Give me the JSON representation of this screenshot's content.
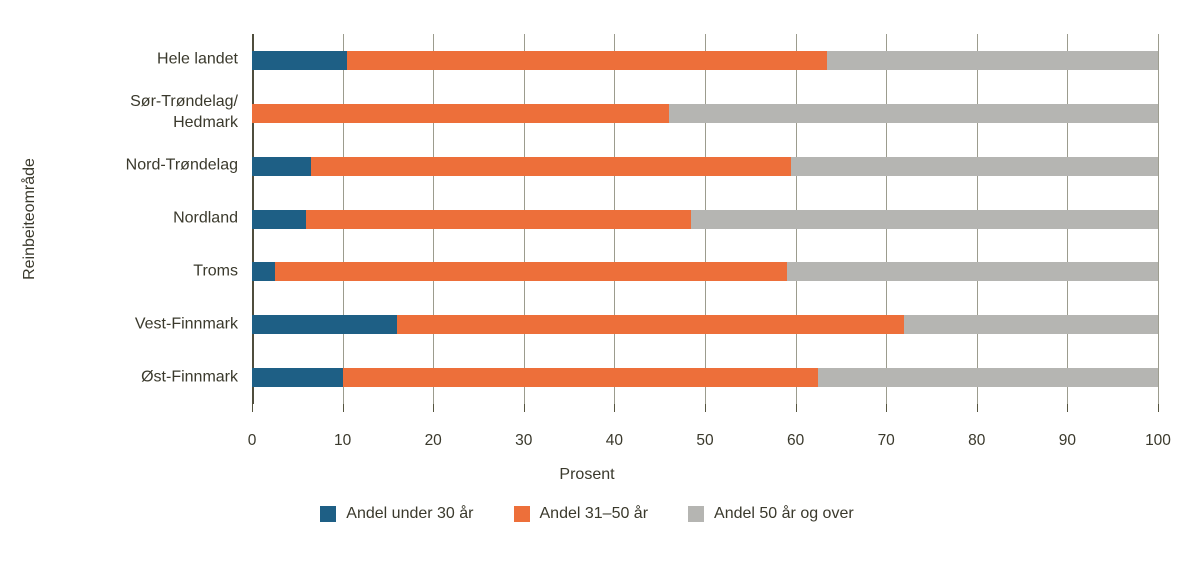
{
  "chart_data": {
    "type": "bar",
    "orientation": "horizontal",
    "stacked": true,
    "title": "",
    "xlabel": "Prosent",
    "ylabel": "Reinbeiteområde",
    "xlim": [
      0,
      100
    ],
    "xticks": [
      0,
      10,
      20,
      30,
      40,
      50,
      60,
      70,
      80,
      90,
      100
    ],
    "grid": true,
    "legend_position": "bottom",
    "categories": [
      "Hele landet",
      "Sør-Trøndelag/Hedmark",
      "Nord-Trøndelag",
      "Nordland",
      "Troms",
      "Vest-Finnmark",
      "Øst-Finnmark"
    ],
    "series": [
      {
        "name": "Andel under 30 år",
        "color": "#1e5f85",
        "values": [
          10.5,
          0,
          6.5,
          6,
          2.5,
          16,
          10
        ]
      },
      {
        "name": "Andel 31–50 år",
        "color": "#ed6f3a",
        "values": [
          53,
          46,
          53,
          42.5,
          56.5,
          56,
          52.5
        ]
      },
      {
        "name": "Andel 50 år og over",
        "color": "#b5b5b2",
        "values": [
          36.5,
          54,
          40.5,
          51.5,
          41,
          28,
          37.5
        ]
      }
    ],
    "colors": {
      "grid": "#9c9c8e",
      "zero_line": "#4f4e3d",
      "tick": "#55543f",
      "text": "#3a392c"
    }
  }
}
